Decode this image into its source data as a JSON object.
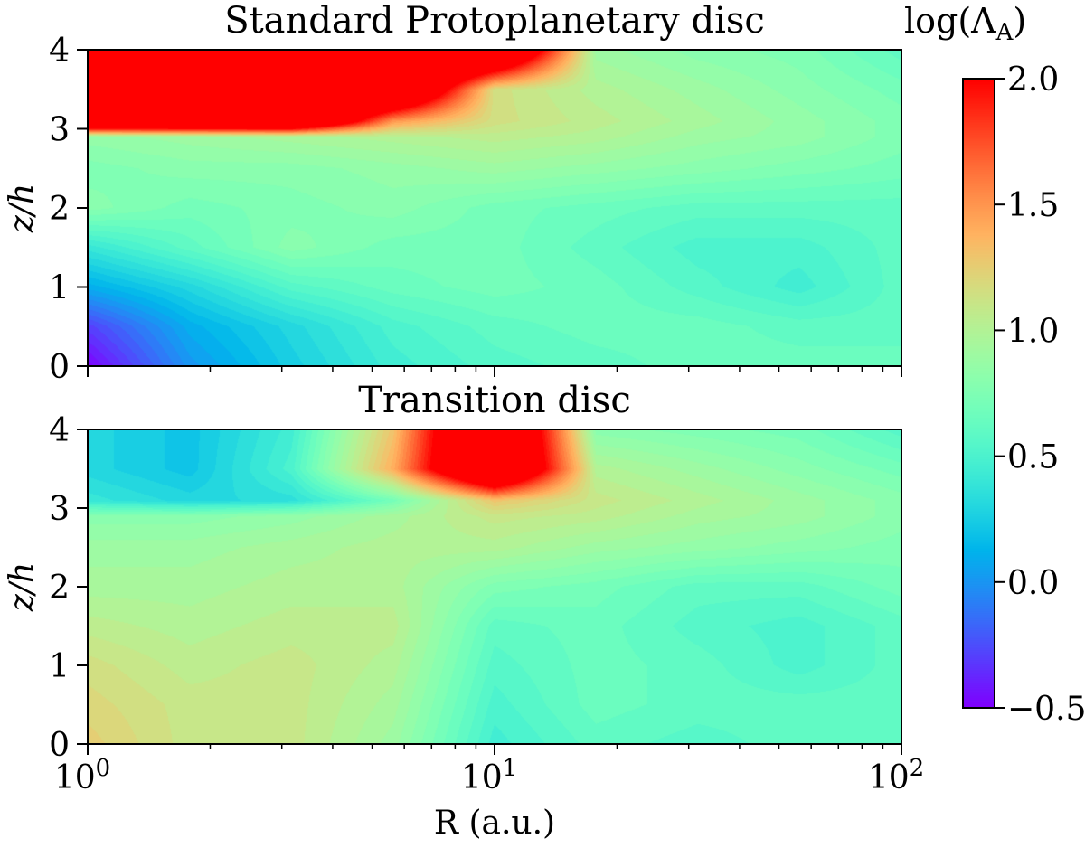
{
  "chart_data": [
    {
      "type": "heatmap",
      "title": "Standard Protoplanetary disc",
      "xlabel": "R (a.u.)",
      "ylabel": "z/h",
      "xscale": "log",
      "xlim": [
        1,
        100
      ],
      "ylim": [
        0,
        4
      ],
      "yticks": [
        "0",
        "1",
        "2",
        "3",
        "4"
      ],
      "grid_log10R": [
        0,
        0.25,
        0.5,
        0.75,
        1,
        1.25,
        1.5,
        1.75,
        2
      ],
      "grid_z": [
        4,
        3.5,
        3.1,
        2.9,
        2.5,
        2,
        1.5,
        1,
        0.5,
        0
      ],
      "values": [
        [
          3,
          3,
          3,
          3,
          3,
          0.9,
          0.8,
          0.75,
          0.6
        ],
        [
          3,
          3,
          3,
          3,
          1.15,
          1.0,
          0.9,
          0.8,
          0.7
        ],
        [
          3,
          3,
          3,
          1.5,
          1.15,
          1.05,
          0.95,
          0.85,
          0.75
        ],
        [
          0.85,
          0.9,
          0.95,
          1.0,
          1.05,
          1.0,
          0.9,
          0.85,
          0.75
        ],
        [
          0.75,
          0.8,
          0.8,
          0.85,
          0.9,
          0.85,
          0.8,
          0.75,
          0.7
        ],
        [
          0.8,
          0.7,
          0.75,
          0.8,
          0.7,
          0.65,
          0.6,
          0.6,
          0.6
        ],
        [
          0.4,
          0.6,
          0.8,
          0.7,
          0.7,
          0.6,
          0.5,
          0.5,
          0.6
        ],
        [
          0.1,
          0.3,
          0.55,
          0.65,
          0.7,
          0.65,
          0.55,
          0.45,
          0.6
        ],
        [
          -0.3,
          0.1,
          0.3,
          0.5,
          0.6,
          0.65,
          0.65,
          0.6,
          0.6
        ],
        [
          -0.5,
          0.0,
          0.25,
          0.45,
          0.55,
          0.6,
          0.65,
          0.65,
          0.65
        ]
      ]
    },
    {
      "type": "heatmap",
      "title": "Transition disc",
      "xlabel": "R (a.u.)",
      "ylabel": "z/h",
      "xscale": "log",
      "xlim": [
        1,
        100
      ],
      "ylim": [
        0,
        4
      ],
      "xticks": [
        {
          "base": "10",
          "exp": "0"
        },
        {
          "base": "10",
          "exp": "1"
        },
        {
          "base": "10",
          "exp": "2"
        }
      ],
      "yticks": [
        "0",
        "1",
        "2",
        "3",
        "4"
      ],
      "grid_log10R": [
        0,
        0.25,
        0.5,
        0.75,
        1,
        1.25,
        1.5,
        1.75,
        2
      ],
      "grid_z": [
        4,
        3.5,
        3.1,
        2.9,
        2.5,
        2,
        1.5,
        1,
        0.5,
        0
      ],
      "values": [
        [
          0.3,
          0.2,
          0.45,
          1.3,
          3,
          0.8,
          0.75,
          0.7,
          0.55
        ],
        [
          0.3,
          0.2,
          0.5,
          1.4,
          3,
          1.0,
          0.9,
          0.8,
          0.7
        ],
        [
          0.4,
          0.3,
          0.35,
          0.7,
          1.3,
          1.1,
          1.0,
          0.9,
          0.8
        ],
        [
          0.8,
          0.8,
          0.85,
          0.95,
          1.1,
          1.05,
          0.95,
          0.9,
          0.8
        ],
        [
          0.9,
          0.9,
          0.95,
          1.0,
          1.0,
          0.9,
          0.85,
          0.8,
          0.75
        ],
        [
          0.95,
          0.95,
          1.0,
          1.0,
          0.75,
          0.7,
          0.6,
          0.6,
          0.7
        ],
        [
          1.05,
          1.0,
          1.05,
          1.05,
          0.6,
          0.65,
          0.55,
          0.5,
          0.6
        ],
        [
          1.15,
          1.05,
          1.1,
          1.0,
          0.55,
          0.65,
          0.6,
          0.5,
          0.6
        ],
        [
          1.2,
          1.1,
          1.1,
          0.95,
          0.5,
          0.65,
          0.6,
          0.6,
          0.6
        ],
        [
          1.25,
          1.1,
          1.1,
          0.9,
          0.45,
          0.6,
          0.55,
          0.6,
          0.6
        ]
      ]
    }
  ],
  "colorbar": {
    "label_main": "log(Λ",
    "label_sub": "A",
    "label_close": ")",
    "range": [
      -0.5,
      2.0
    ],
    "colormap": "rainbow",
    "ticks": [
      "2.0",
      "1.5",
      "1.0",
      "0.5",
      "0.0",
      "−0.5"
    ],
    "tick_values": [
      2.0,
      1.5,
      1.0,
      0.5,
      0.0,
      -0.5
    ]
  }
}
